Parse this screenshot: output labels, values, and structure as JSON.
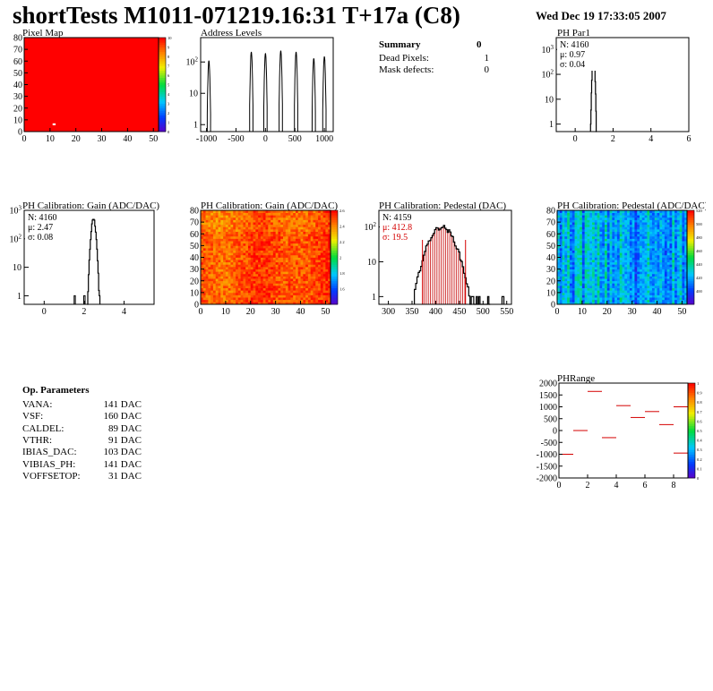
{
  "header": {
    "title": "shortTests M1011-071219.16:31 T+17a (C8)",
    "date": "Wed Dec 19 17:33:05 2007"
  },
  "summary": {
    "title": "Summary",
    "title_value": "0",
    "rows": [
      {
        "label": "Dead Pixels:",
        "value": "1"
      },
      {
        "label": "Mask defects:",
        "value": "0"
      }
    ]
  },
  "op_parameters": {
    "title": "Op. Parameters",
    "rows": [
      {
        "label": "VANA:",
        "value": "141 DAC"
      },
      {
        "label": "VSF:",
        "value": "160 DAC"
      },
      {
        "label": "CALDEL:",
        "value": "89 DAC"
      },
      {
        "label": "VTHR:",
        "value": "91 DAC"
      },
      {
        "label": "IBIAS_DAC:",
        "value": "103 DAC"
      },
      {
        "label": "VIBIAS_PH:",
        "value": "141 DAC"
      },
      {
        "label": "VOFFSETOP:",
        "value": "31 DAC"
      }
    ]
  },
  "colors": {
    "frame": "#000000",
    "stat_red": "#d40000",
    "map_red": "#ff0000"
  },
  "chart_data": [
    {
      "id": "pixel-map",
      "type": "heatmap",
      "title": "Pixel Map",
      "xlim": [
        0,
        52
      ],
      "ylim": [
        0,
        80
      ],
      "xticks": [
        "0",
        "10",
        "20",
        "30",
        "40",
        "50"
      ],
      "yticks": [
        "0",
        "10",
        "20",
        "30",
        "40",
        "50",
        "60",
        "70",
        "80"
      ],
      "uniform_value": 10,
      "dead_pixels": [
        {
          "x": 11,
          "y": 6
        }
      ],
      "colorbar": {
        "min": 0,
        "max": 10,
        "labels": [
          "0",
          "1",
          "2",
          "3",
          "4",
          "5",
          "6",
          "7",
          "8",
          "9",
          "10"
        ]
      }
    },
    {
      "id": "address-levels",
      "type": "line",
      "title": "Address Levels",
      "log_y": true,
      "xlim": [
        -1100,
        1150
      ],
      "ylim": [
        0.6,
        600
      ],
      "xticks": [
        "-1000",
        "-500",
        "0",
        "500",
        "1000"
      ],
      "yticks": [
        "1",
        "10",
        "10^2"
      ],
      "peaks": [
        -960,
        -240,
        0,
        260,
        520,
        820,
        1000
      ],
      "peak_heights": [
        110,
        210,
        190,
        230,
        210,
        130,
        150
      ]
    },
    {
      "id": "ph-par1",
      "type": "line",
      "title": "PH Par1",
      "log_y": true,
      "xlim": [
        -1,
        6
      ],
      "ylim": [
        0.5,
        3000
      ],
      "xticks": [
        "0",
        "2",
        "4",
        "6"
      ],
      "yticks": [
        "1",
        "10",
        "10^2",
        "10^3"
      ],
      "stats": {
        "N": "N: 4160",
        "mean": "μ: 0.97",
        "sigma": "σ: 0.04"
      },
      "mean": 0.97,
      "sigma": 0.04,
      "peak": 700
    },
    {
      "id": "ph-gain",
      "type": "line",
      "title": "PH Calibration: Gain (ADC/DAC)",
      "log_y": true,
      "xlim": [
        -1,
        5.5
      ],
      "ylim": [
        0.5,
        1000
      ],
      "xticks": [
        "0",
        "2",
        "4"
      ],
      "yticks": [
        "1",
        "10",
        "10^2",
        "10^3"
      ],
      "stats": {
        "N": "N: 4160",
        "mean": "μ: 2.47",
        "sigma": "σ: 0.08"
      },
      "mean": 2.47,
      "sigma": 0.08,
      "peak": 500
    },
    {
      "id": "gain-map",
      "type": "heatmap",
      "title": "PH Calibration: Gain (ADC/DAC)",
      "xlim": [
        0,
        52
      ],
      "ylim": [
        0,
        80
      ],
      "xticks": [
        "0",
        "10",
        "20",
        "30",
        "40",
        "50"
      ],
      "yticks": [
        "0",
        "10",
        "20",
        "30",
        "40",
        "50",
        "60",
        "70",
        "80"
      ],
      "colorbar": {
        "min": 1.4,
        "max": 2.6,
        "labels": [
          "1.6",
          "1.8",
          "2",
          "2.2",
          "2.4",
          "2.6"
        ]
      }
    },
    {
      "id": "ph-pedestal",
      "type": "bar",
      "title": "PH Calibration: Pedestal (DAC)",
      "log_y": true,
      "xlim": [
        280,
        560
      ],
      "ylim": [
        0.6,
        300
      ],
      "xticks": [
        "300",
        "350",
        "400",
        "450",
        "500",
        "550"
      ],
      "yticks": [
        "1",
        "10",
        "10^2"
      ],
      "stats": {
        "N": "N: 4159",
        "mean": "μ: 412.8",
        "sigma": "σ: 19.5"
      },
      "mean": 412.8,
      "sigma": 19.5,
      "peak": 100,
      "cut_lines": [
        372,
        463
      ]
    },
    {
      "id": "pedestal-map",
      "type": "heatmap",
      "title": "PH Calibration: Pedestal (ADC/DAC)",
      "xlim": [
        0,
        52
      ],
      "ylim": [
        0,
        80
      ],
      "xticks": [
        "0",
        "10",
        "20",
        "30",
        "40",
        "50"
      ],
      "yticks": [
        "0",
        "10",
        "20",
        "30",
        "40",
        "50",
        "60",
        "70",
        "80"
      ],
      "colorbar": {
        "min": 380,
        "max": 520,
        "labels": [
          "400",
          "420",
          "440",
          "460",
          "480",
          "500",
          "520"
        ]
      }
    },
    {
      "id": "phrange",
      "type": "scatter",
      "title": "PHRange",
      "xlim": [
        0,
        9
      ],
      "ylim": [
        -2000,
        2000
      ],
      "xticks": [
        "0",
        "2",
        "4",
        "6",
        "8"
      ],
      "yticks": [
        "-2000",
        "-1500",
        "-1000",
        "-500",
        "0",
        "500",
        "1000",
        "1500",
        "2000"
      ],
      "segments": [
        {
          "x": [
            0,
            1
          ],
          "y": -1000
        },
        {
          "x": [
            1,
            2
          ],
          "y": 0
        },
        {
          "x": [
            2,
            3
          ],
          "y": 1650
        },
        {
          "x": [
            3,
            4
          ],
          "y": -300
        },
        {
          "x": [
            4,
            5
          ],
          "y": 1050
        },
        {
          "x": [
            5,
            6
          ],
          "y": 550
        },
        {
          "x": [
            6,
            7
          ],
          "y": 800
        },
        {
          "x": [
            7,
            8
          ],
          "y": 250
        },
        {
          "x": [
            8,
            9
          ],
          "y": -950
        },
        {
          "x": [
            8,
            9
          ],
          "y": 1000
        }
      ],
      "colorbar": {
        "min": 0,
        "max": 1,
        "labels": [
          "0",
          "0.1",
          "0.2",
          "0.3",
          "0.4",
          "0.5",
          "0.6",
          "0.7",
          "0.8",
          "0.9",
          "1"
        ]
      }
    }
  ]
}
